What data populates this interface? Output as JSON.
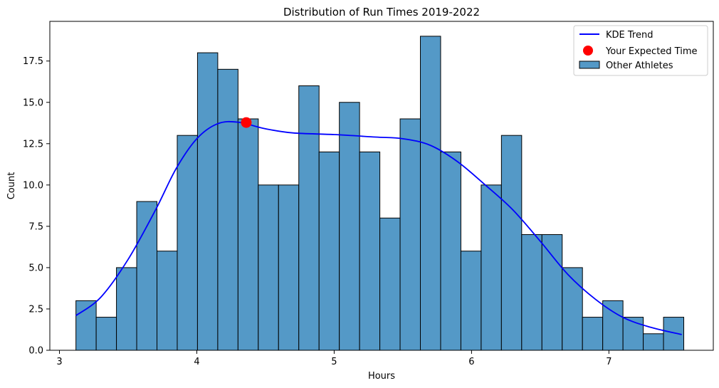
{
  "chart_data": {
    "type": "histogram",
    "title": "Distribution of Run Times 2019-2022",
    "xlabel": "Hours",
    "ylabel": "Count",
    "xlim": [
      2.93,
      7.76
    ],
    "ylim": [
      0,
      19.9
    ],
    "xticks": [
      3,
      4,
      5,
      6,
      7
    ],
    "yticks": [
      0.0,
      2.5,
      5.0,
      7.5,
      10.0,
      12.5,
      15.0,
      17.5
    ],
    "grid": false,
    "legend_position": "top-right",
    "bins": {
      "start": 3.12,
      "width": 0.1475,
      "counts": [
        3,
        2,
        5,
        9,
        6,
        13,
        18,
        17,
        14,
        10,
        10,
        16,
        12,
        15,
        12,
        8,
        14,
        19,
        12,
        6,
        10,
        13,
        7,
        7,
        5,
        2,
        3,
        2,
        1,
        2
      ]
    },
    "series": [
      {
        "name": "KDE Trend",
        "type": "line",
        "color": "#0000ff",
        "x": [
          3.12,
          3.3,
          3.5,
          3.7,
          3.85,
          4.0,
          4.15,
          4.3,
          4.5,
          4.7,
          5.0,
          5.3,
          5.5,
          5.7,
          5.9,
          6.1,
          6.3,
          6.5,
          6.7,
          6.9,
          7.1,
          7.3,
          7.53
        ],
        "y": [
          2.1,
          3.2,
          5.5,
          8.5,
          11.0,
          12.8,
          13.7,
          13.8,
          13.4,
          13.15,
          13.05,
          12.9,
          12.8,
          12.4,
          11.4,
          10.0,
          8.5,
          6.6,
          4.6,
          3.1,
          2.0,
          1.4,
          0.95
        ]
      },
      {
        "name": "Your Expected Time",
        "type": "scatter",
        "color": "#ff0000",
        "x": [
          4.36
        ],
        "y": [
          13.78
        ]
      },
      {
        "name": "Other Athletes",
        "type": "bar",
        "color": "#5499c7"
      }
    ]
  }
}
